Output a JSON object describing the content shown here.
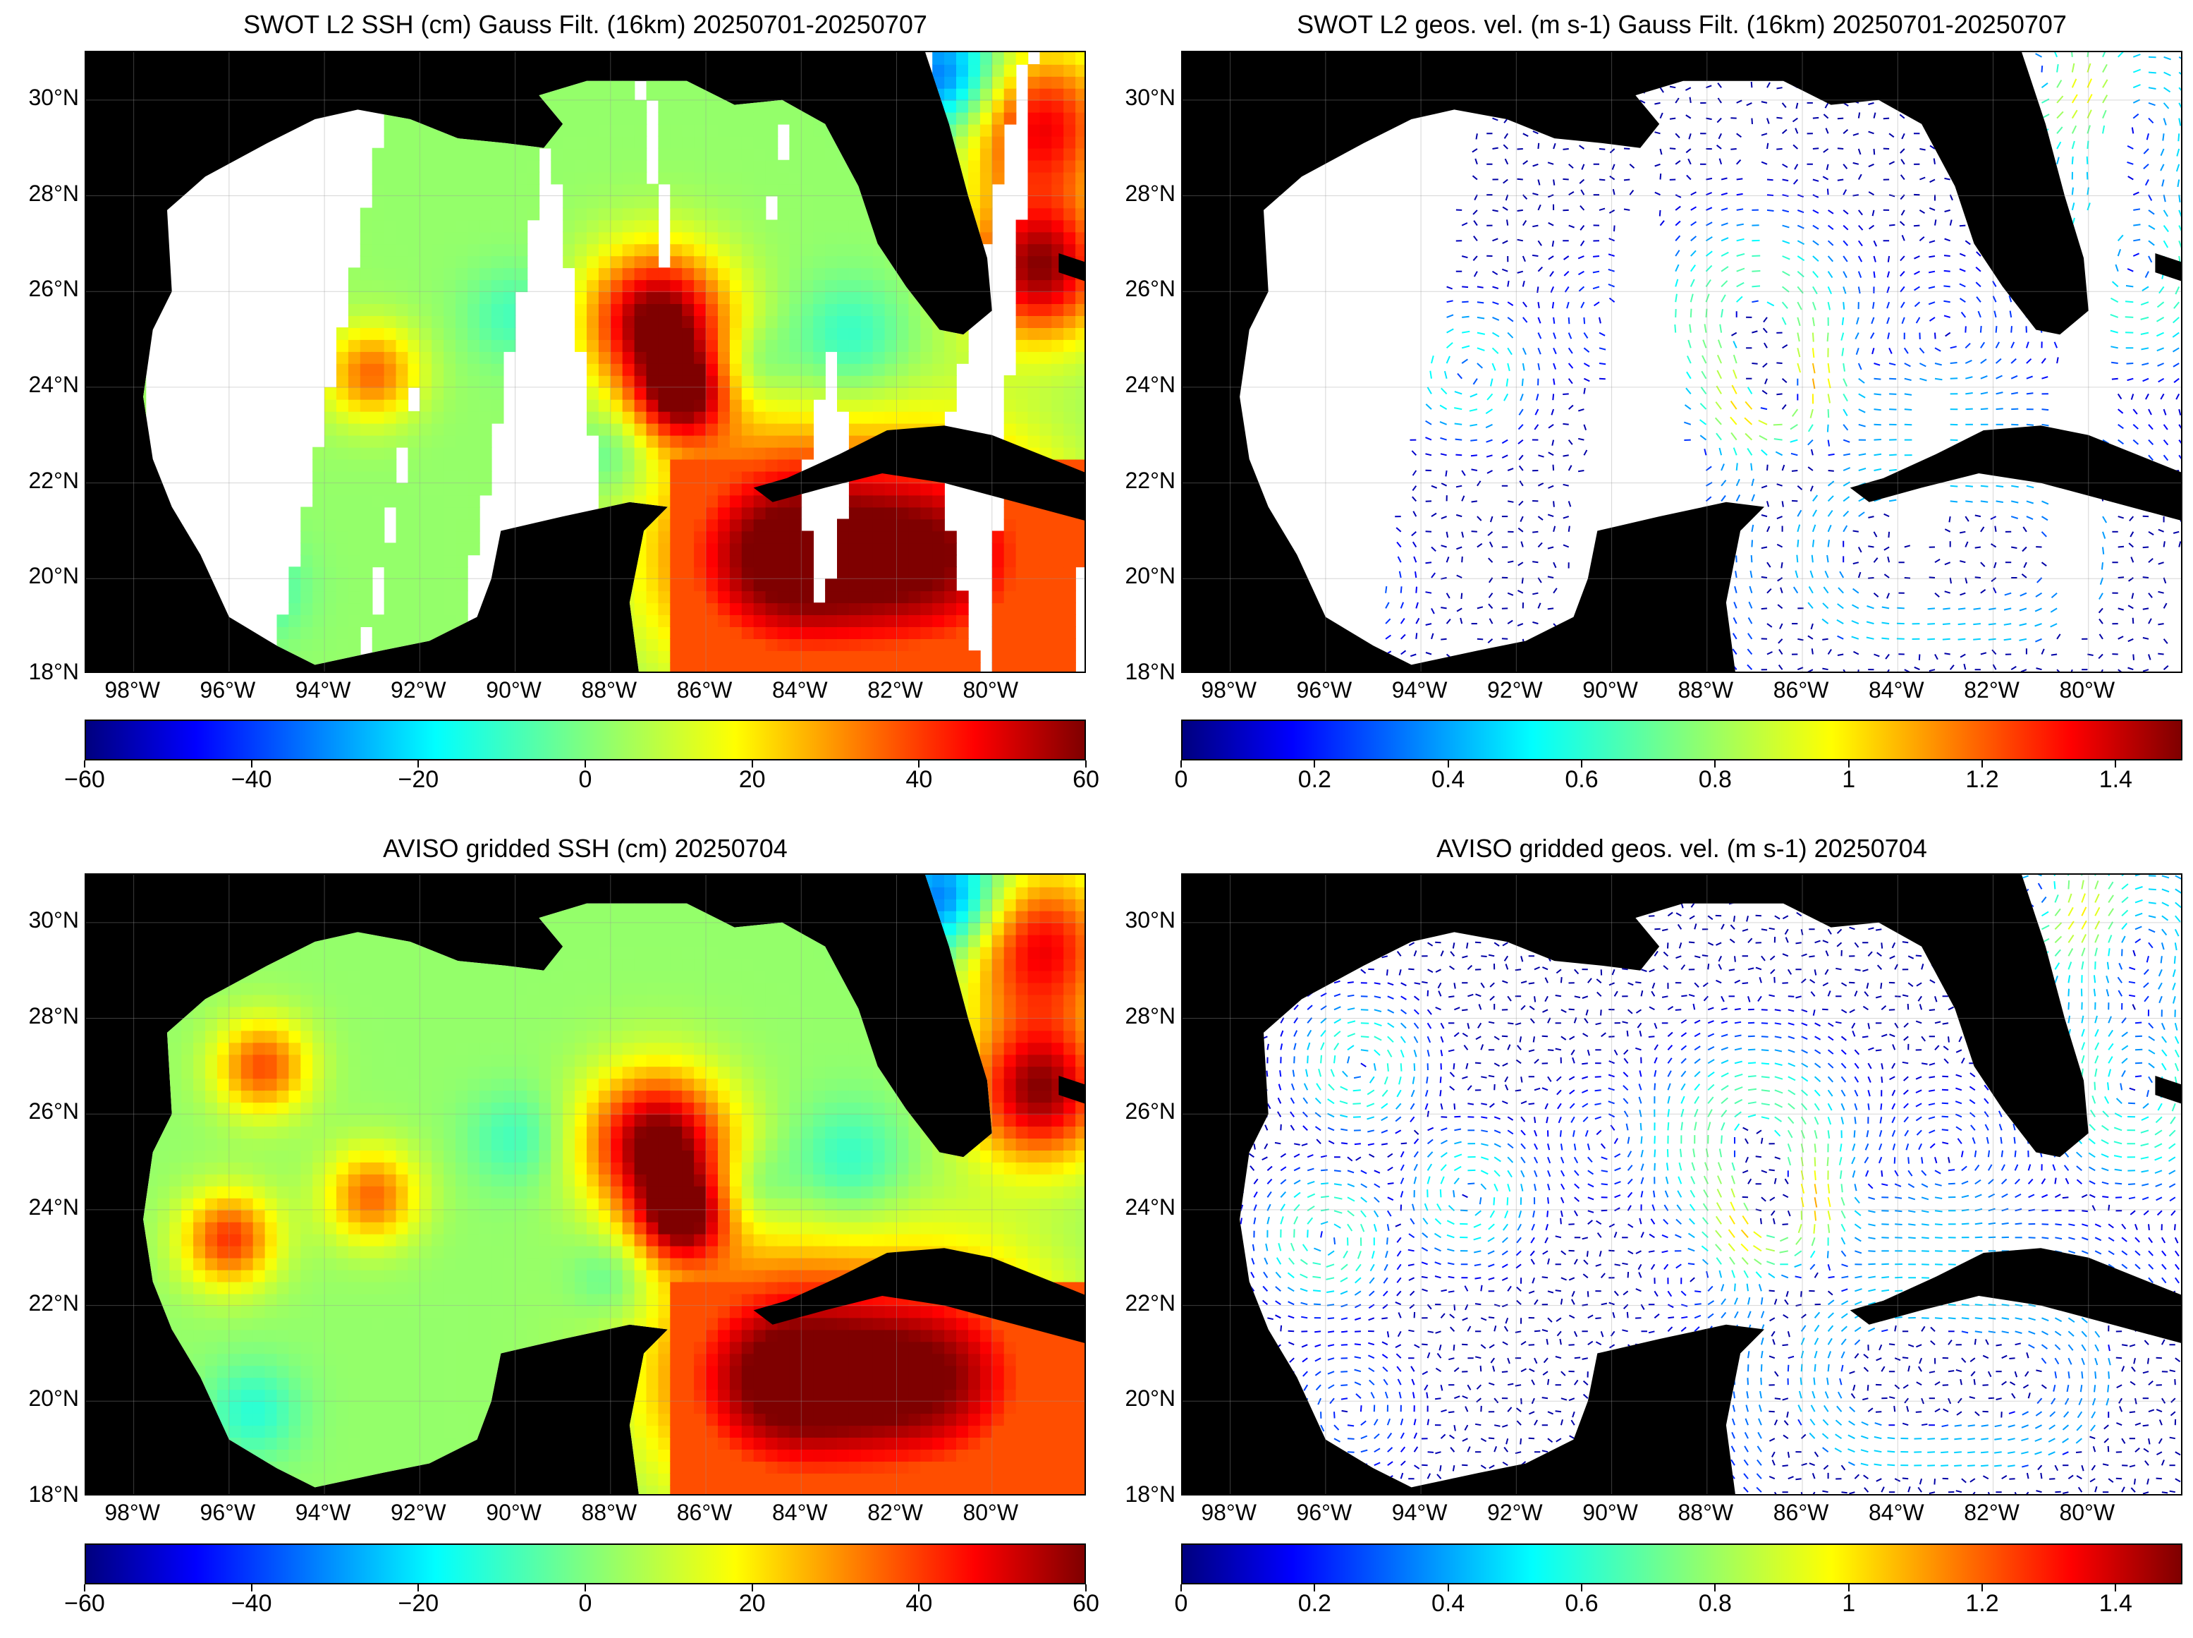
{
  "panels": [
    {
      "id": "p1",
      "title": "SWOT L2 SSH (cm) Gauss Filt. (16km) 20250701-20250707",
      "kind": "swot-ssh"
    },
    {
      "id": "p2",
      "title": "SWOT L2 geos. vel. (m s-1) Gauss Filt. (16km) 20250701-20250707",
      "kind": "swot-vel"
    },
    {
      "id": "p3",
      "title": "AVISO gridded SSH (cm) 20250704",
      "kind": "aviso-ssh"
    },
    {
      "id": "p4",
      "title": "AVISO gridded geos. vel. (m s-1)  20250704",
      "kind": "aviso-vel"
    }
  ],
  "lat_labels": [
    "30°N",
    "28°N",
    "26°N",
    "24°N",
    "22°N",
    "20°N",
    "18°N"
  ],
  "lon_labels": [
    "98°W",
    "96°W",
    "94°W",
    "92°W",
    "90°W",
    "88°W",
    "86°W",
    "84°W",
    "82°W",
    "80°W"
  ],
  "ssh_colorbar": {
    "min": -60,
    "max": 60,
    "ticks": [
      "−60",
      "−40",
      "−20",
      "0",
      "20",
      "40",
      "60"
    ]
  },
  "vel_colorbar": {
    "min": 0,
    "max": 1.5,
    "ticks": [
      "0",
      "0.2",
      "0.4",
      "0.6",
      "0.8",
      "1",
      "1.2",
      "1.4"
    ]
  },
  "map_extent": {
    "lon": [
      -99,
      -78
    ],
    "lat": [
      18,
      31
    ]
  }
}
